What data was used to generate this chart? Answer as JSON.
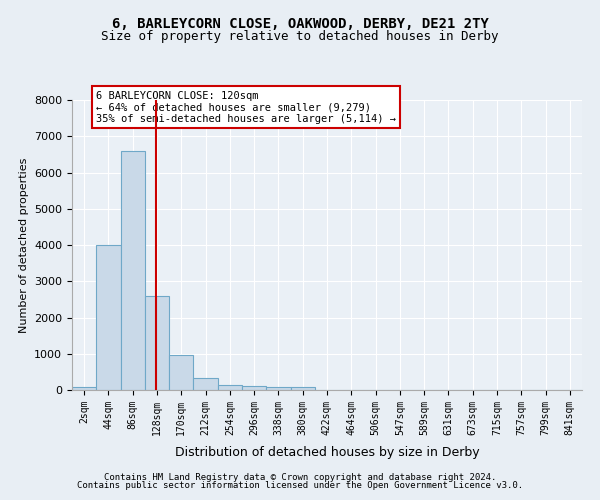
{
  "title_line1": "6, BARLEYCORN CLOSE, OAKWOOD, DERBY, DE21 2TY",
  "title_line2": "Size of property relative to detached houses in Derby",
  "xlabel": "Distribution of detached houses by size in Derby",
  "ylabel": "Number of detached properties",
  "bin_labels": [
    "2sqm",
    "44sqm",
    "86sqm",
    "128sqm",
    "170sqm",
    "212sqm",
    "254sqm",
    "296sqm",
    "338sqm",
    "380sqm",
    "422sqm",
    "464sqm",
    "506sqm",
    "547sqm",
    "589sqm",
    "631sqm",
    "673sqm",
    "715sqm",
    "757sqm",
    "799sqm",
    "841sqm"
  ],
  "bar_values": [
    80,
    4000,
    6600,
    2600,
    960,
    330,
    150,
    110,
    70,
    70,
    0,
    0,
    0,
    0,
    0,
    0,
    0,
    0,
    0,
    0,
    0
  ],
  "bar_color": "#c9d9e8",
  "bar_edge_color": "#6fa8c8",
  "vline_x": 2.95,
  "vline_color": "#cc0000",
  "annotation_text": "6 BARLEYCORN CLOSE: 120sqm\n← 64% of detached houses are smaller (9,279)\n35% of semi-detached houses are larger (5,114) →",
  "annotation_box_color": "#ffffff",
  "annotation_box_edge": "#cc0000",
  "ylim": [
    0,
    8000
  ],
  "yticks": [
    0,
    1000,
    2000,
    3000,
    4000,
    5000,
    6000,
    7000,
    8000
  ],
  "footer_line1": "Contains HM Land Registry data © Crown copyright and database right 2024.",
  "footer_line2": "Contains public sector information licensed under the Open Government Licence v3.0.",
  "bg_color": "#e8eef4",
  "plot_bg_color": "#eaf0f6"
}
